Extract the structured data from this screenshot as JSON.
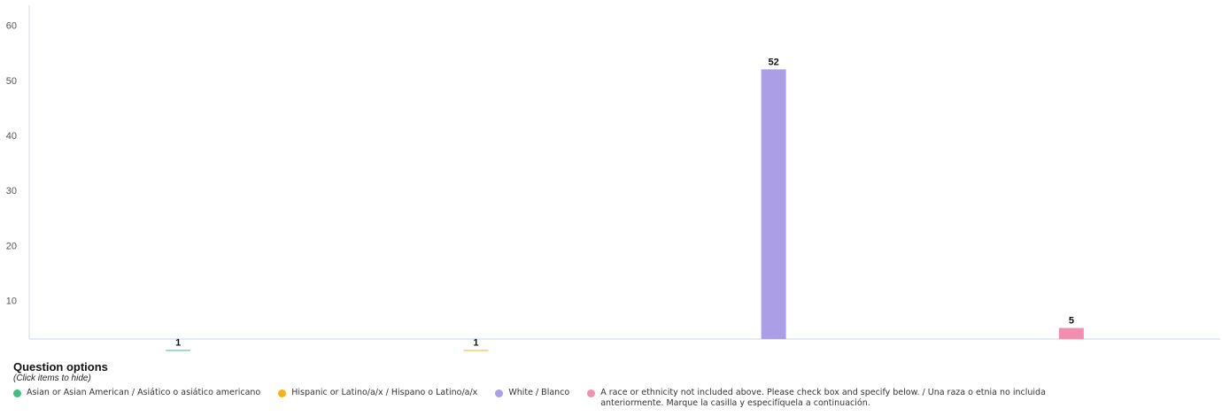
{
  "chart_data": {
    "type": "bar",
    "categories": [
      "Asian or Asian American / Asiático o asiático americano",
      "Hispanic or Latino/a/x / Hispano o Latino/a/x",
      "White / Blanco",
      "A race or ethnicity not included above. Please check box and specify below. / Una raza o etnia no incluida anteriormente. Marque la casilla y especifíquela a continuación."
    ],
    "values": [
      1,
      1,
      52,
      5
    ],
    "data_labels": [
      "1",
      "1",
      "52",
      "5"
    ],
    "colors": [
      "#3dbf7f",
      "#f2b418",
      "#ab9ee6",
      "#f28fb0"
    ],
    "yticks": [
      "10",
      "20",
      "30",
      "40",
      "50",
      "60"
    ],
    "ylim": [
      3,
      63
    ],
    "grid": false,
    "legend_position": "bottom-left"
  },
  "legend": {
    "title": "Question options",
    "hint": "(Click items to hide)"
  }
}
